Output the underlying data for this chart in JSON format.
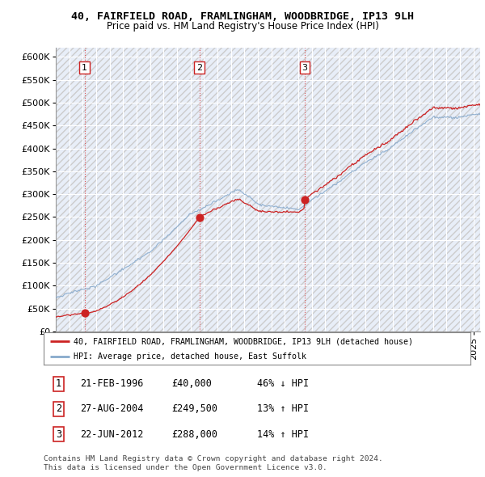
{
  "title": "40, FAIRFIELD ROAD, FRAMLINGHAM, WOODBRIDGE, IP13 9LH",
  "subtitle": "Price paid vs. HM Land Registry's House Price Index (HPI)",
  "ylim": [
    0,
    620000
  ],
  "yticks": [
    0,
    50000,
    100000,
    150000,
    200000,
    250000,
    300000,
    350000,
    400000,
    450000,
    500000,
    550000,
    600000
  ],
  "sale_dates": [
    1996.13,
    2004.65,
    2012.47
  ],
  "sale_prices": [
    40000,
    249500,
    288000
  ],
  "sale_labels": [
    "1",
    "2",
    "3"
  ],
  "red_line_color": "#cc2222",
  "blue_line_color": "#88aacc",
  "dashed_line_color": "#dd4444",
  "plot_bg": "#e8eef8",
  "legend_label_red": "40, FAIRFIELD ROAD, FRAMLINGHAM, WOODBRIDGE, IP13 9LH (detached house)",
  "legend_label_blue": "HPI: Average price, detached house, East Suffolk",
  "table_rows": [
    [
      "1",
      "21-FEB-1996",
      "£40,000",
      "46% ↓ HPI"
    ],
    [
      "2",
      "27-AUG-2004",
      "£249,500",
      "13% ↑ HPI"
    ],
    [
      "3",
      "22-JUN-2012",
      "£288,000",
      "14% ↑ HPI"
    ]
  ],
  "footnote": "Contains HM Land Registry data © Crown copyright and database right 2024.\nThis data is licensed under the Open Government Licence v3.0.",
  "xmin": 1994.0,
  "xmax": 2025.5
}
